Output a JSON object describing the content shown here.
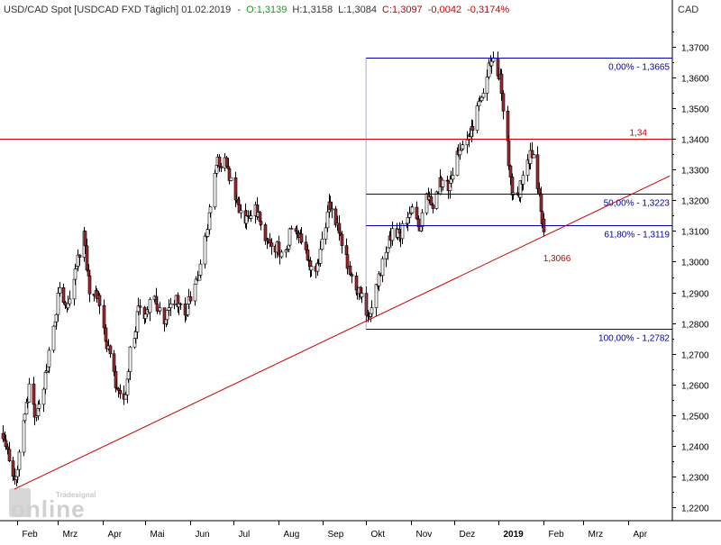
{
  "header": {
    "instrument": "USD/CAD Spot [USDCAD FXD  Täglich] 01.02.2019",
    "open": "O:1,3139",
    "high": "H:1,3158",
    "low": "L:1,3084",
    "close": "C:1,3097",
    "change": "-0,0042",
    "change_pct": "-0,3174%",
    "colors": {
      "default": "#333333",
      "up": "#1a9c1a",
      "down": "#cc0000"
    }
  },
  "currency_label": "CAD",
  "watermark": {
    "small": "Tradesignal",
    "large": "online"
  },
  "chart_data": {
    "type": "candlestick",
    "title": "USD/CAD Spot [USDCAD FXD  Täglich] 01.02.2019",
    "ylabel": "CAD",
    "ylim": [
      1.2155,
      1.3795
    ],
    "y_ticks": [
      1.22,
      1.23,
      1.24,
      1.25,
      1.26,
      1.27,
      1.28,
      1.29,
      1.3,
      1.31,
      1.32,
      1.33,
      1.34,
      1.35,
      1.36,
      1.37
    ],
    "y_tick_labels": [
      "1,2200",
      "1,2300",
      "1,2400",
      "1,2500",
      "1,2600",
      "1,2700",
      "1,2800",
      "1,2900",
      "1,3000",
      "1,3100",
      "1,3200",
      "1,3300",
      "1,3400",
      "1,3500",
      "1,3600",
      "1,3700"
    ],
    "x_labels": [
      "Feb",
      "Mrz",
      "Apr",
      "Mai",
      "Jun",
      "Jul",
      "Aug",
      "Sep",
      "Okt",
      "Nov",
      "Dez",
      "2019",
      "Feb",
      "Mrz",
      "Apr"
    ],
    "grid": false,
    "colors": {
      "candle_up": "#ffffff",
      "candle_down": "#a0262f",
      "wick": "#000000",
      "fib": "#0000aa",
      "level": "#cc0000",
      "trend": "#cc0000"
    },
    "price_path": [
      [
        "2018-01-22",
        1.244
      ],
      [
        "2018-01-25",
        1.238
      ],
      [
        "2018-01-31",
        1.229
      ],
      [
        "2018-02-02",
        1.238
      ],
      [
        "2018-02-09",
        1.258
      ],
      [
        "2018-02-14",
        1.248
      ],
      [
        "2018-02-21",
        1.264
      ],
      [
        "2018-02-28",
        1.283
      ],
      [
        "2018-03-02",
        1.293
      ],
      [
        "2018-03-07",
        1.285
      ],
      [
        "2018-03-12",
        1.294
      ],
      [
        "2018-03-19",
        1.31
      ],
      [
        "2018-03-23",
        1.288
      ],
      [
        "2018-03-28",
        1.29
      ],
      [
        "2018-04-02",
        1.278
      ],
      [
        "2018-04-09",
        1.262
      ],
      [
        "2018-04-16",
        1.255
      ],
      [
        "2018-04-20",
        1.27
      ],
      [
        "2018-04-26",
        1.284
      ],
      [
        "2018-05-01",
        1.283
      ],
      [
        "2018-05-07",
        1.288
      ],
      [
        "2018-05-14",
        1.281
      ],
      [
        "2018-05-21",
        1.288
      ],
      [
        "2018-05-28",
        1.282
      ],
      [
        "2018-06-04",
        1.293
      ],
      [
        "2018-06-08",
        1.299
      ],
      [
        "2018-06-14",
        1.315
      ],
      [
        "2018-06-20",
        1.333
      ],
      [
        "2018-06-26",
        1.332
      ],
      [
        "2018-07-02",
        1.32
      ],
      [
        "2018-07-09",
        1.312
      ],
      [
        "2018-07-16",
        1.318
      ],
      [
        "2018-07-23",
        1.308
      ],
      [
        "2018-07-30",
        1.305
      ],
      [
        "2018-08-06",
        1.302
      ],
      [
        "2018-08-10",
        1.312
      ],
      [
        "2018-08-15",
        1.31
      ],
      [
        "2018-08-21",
        1.3
      ],
      [
        "2018-08-27",
        1.295
      ],
      [
        "2018-08-31",
        1.306
      ],
      [
        "2018-09-05",
        1.318
      ],
      [
        "2018-09-12",
        1.31
      ],
      [
        "2018-09-18",
        1.3
      ],
      [
        "2018-09-24",
        1.292
      ],
      [
        "2018-09-28",
        1.29
      ],
      [
        "2018-10-02",
        1.28
      ],
      [
        "2018-10-05",
        1.286
      ],
      [
        "2018-10-10",
        1.296
      ],
      [
        "2018-10-15",
        1.304
      ],
      [
        "2018-10-19",
        1.31
      ],
      [
        "2018-10-24",
        1.308
      ],
      [
        "2018-10-29",
        1.314
      ],
      [
        "2018-11-02",
        1.316
      ],
      [
        "2018-11-07",
        1.311
      ],
      [
        "2018-11-12",
        1.32
      ],
      [
        "2018-11-16",
        1.318
      ],
      [
        "2018-11-21",
        1.326
      ],
      [
        "2018-11-27",
        1.325
      ],
      [
        "2018-12-03",
        1.335
      ],
      [
        "2018-12-07",
        1.338
      ],
      [
        "2018-12-12",
        1.342
      ],
      [
        "2018-12-18",
        1.351
      ],
      [
        "2018-12-24",
        1.362
      ],
      [
        "2018-12-28",
        1.366
      ],
      [
        "2019-01-02",
        1.36
      ],
      [
        "2019-01-07",
        1.338
      ],
      [
        "2019-01-10",
        1.324
      ],
      [
        "2019-01-15",
        1.322
      ],
      [
        "2019-01-18",
        1.33
      ],
      [
        "2019-01-24",
        1.336
      ],
      [
        "2019-01-29",
        1.32
      ],
      [
        "2019-02-01",
        1.3097
      ]
    ],
    "fib_levels": [
      {
        "label": "0,00% - 1,3665",
        "value": 1.3665
      },
      {
        "label": "50,00% - 1,3223",
        "value": 1.3223
      },
      {
        "label": "61,80% - 1,3119",
        "value": 1.3119
      },
      {
        "label": "100,00% - 1,2782",
        "value": 1.2782
      }
    ],
    "fib_start": "2018-10-01",
    "horizontal_level": {
      "label": "1,34",
      "value": 1.34
    },
    "trend_line": {
      "from": [
        "2018-01-30",
        1.2258
      ],
      "to": [
        "2019-04-30",
        1.328
      ]
    },
    "annotation": {
      "label": "1,3066",
      "value": 1.3066,
      "date": "2019-02-01"
    }
  }
}
